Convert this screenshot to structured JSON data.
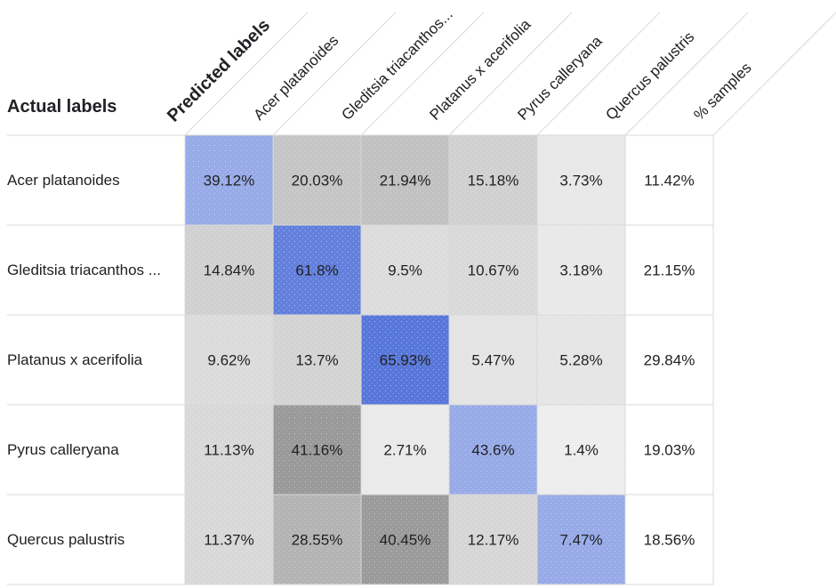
{
  "chart_data": {
    "type": "heatmap",
    "title": "",
    "xlabel": "Predicted labels",
    "ylabel": "Actual labels",
    "x_categories": [
      "Acer platanoides",
      "Gleditsia triacanthos...",
      "Platanus x acerifolia",
      "Pyrus calleryana",
      "Quercus palustris",
      "% samples"
    ],
    "y_categories": [
      "Acer platanoides",
      "Gleditsia triacanthos ...",
      "Platanus x acerifolia",
      "Pyrus calleryana",
      "Quercus palustris"
    ],
    "values": [
      [
        39.12,
        20.03,
        21.94,
        15.18,
        3.73
      ],
      [
        14.84,
        61.8,
        9.5,
        10.67,
        3.18
      ],
      [
        9.62,
        13.7,
        65.93,
        5.47,
        5.28
      ],
      [
        11.13,
        41.16,
        2.71,
        43.6,
        1.4
      ],
      [
        11.37,
        28.55,
        40.45,
        12.17,
        7.47
      ]
    ],
    "cell_labels": [
      [
        "39.12%",
        "20.03%",
        "21.94%",
        "15.18%",
        "3.73%"
      ],
      [
        "14.84%",
        "61.8%",
        "9.5%",
        "10.67%",
        "3.18%"
      ],
      [
        "9.62%",
        "13.7%",
        "65.93%",
        "5.47%",
        "5.28%"
      ],
      [
        "11.13%",
        "41.16%",
        "2.71%",
        "43.6%",
        "1.4%"
      ],
      [
        "11.37%",
        "28.55%",
        "40.45%",
        "12.17%",
        "7.47%"
      ]
    ],
    "sample_percent": [
      11.42,
      21.15,
      29.84,
      19.03,
      18.56
    ],
    "sample_percent_labels": [
      "11.42%",
      "21.15%",
      "29.84%",
      "19.03%",
      "18.56%"
    ],
    "diagonal_color": "#5b7fe0",
    "off_diagonal_color": "#8a8a8a",
    "value_range": [
      0,
      100
    ]
  }
}
